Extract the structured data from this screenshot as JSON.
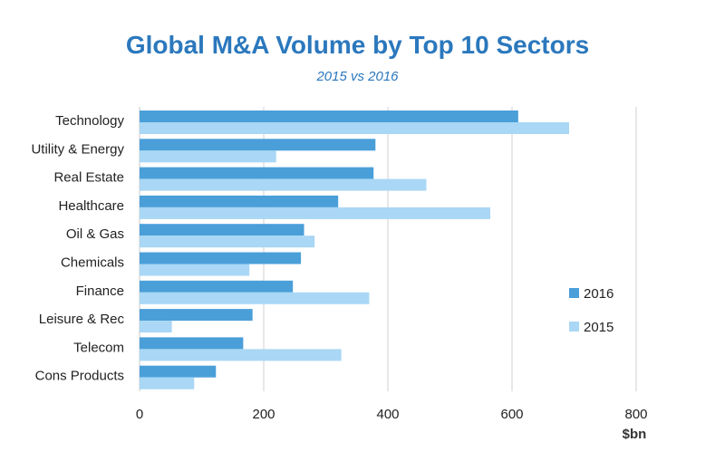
{
  "chart_data": {
    "type": "bar",
    "orientation": "horizontal",
    "title": "Global M&A Volume by Top 10 Sectors",
    "subtitle": "2015 vs 2016",
    "categories": [
      "Technology",
      "Utility & Energy",
      "Real Estate",
      "Healthcare",
      "Oil & Gas",
      "Chemicals",
      "Finance",
      "Leisure & Rec",
      "Telecom",
      "Cons Products"
    ],
    "series": [
      {
        "name": "2016",
        "color": "#4a9fd9",
        "values": [
          610,
          380,
          377,
          320,
          265,
          260,
          247,
          182,
          167,
          123
        ]
      },
      {
        "name": "2015",
        "color": "#a9d7f5",
        "values": [
          692,
          220,
          462,
          565,
          282,
          177,
          370,
          52,
          325,
          88
        ]
      }
    ],
    "xticks": [
      0,
      200,
      400,
      600,
      800
    ],
    "xlim": [
      0,
      800
    ],
    "xlabel": "$bn",
    "ylabel": "",
    "grid": true,
    "legend": "right"
  }
}
